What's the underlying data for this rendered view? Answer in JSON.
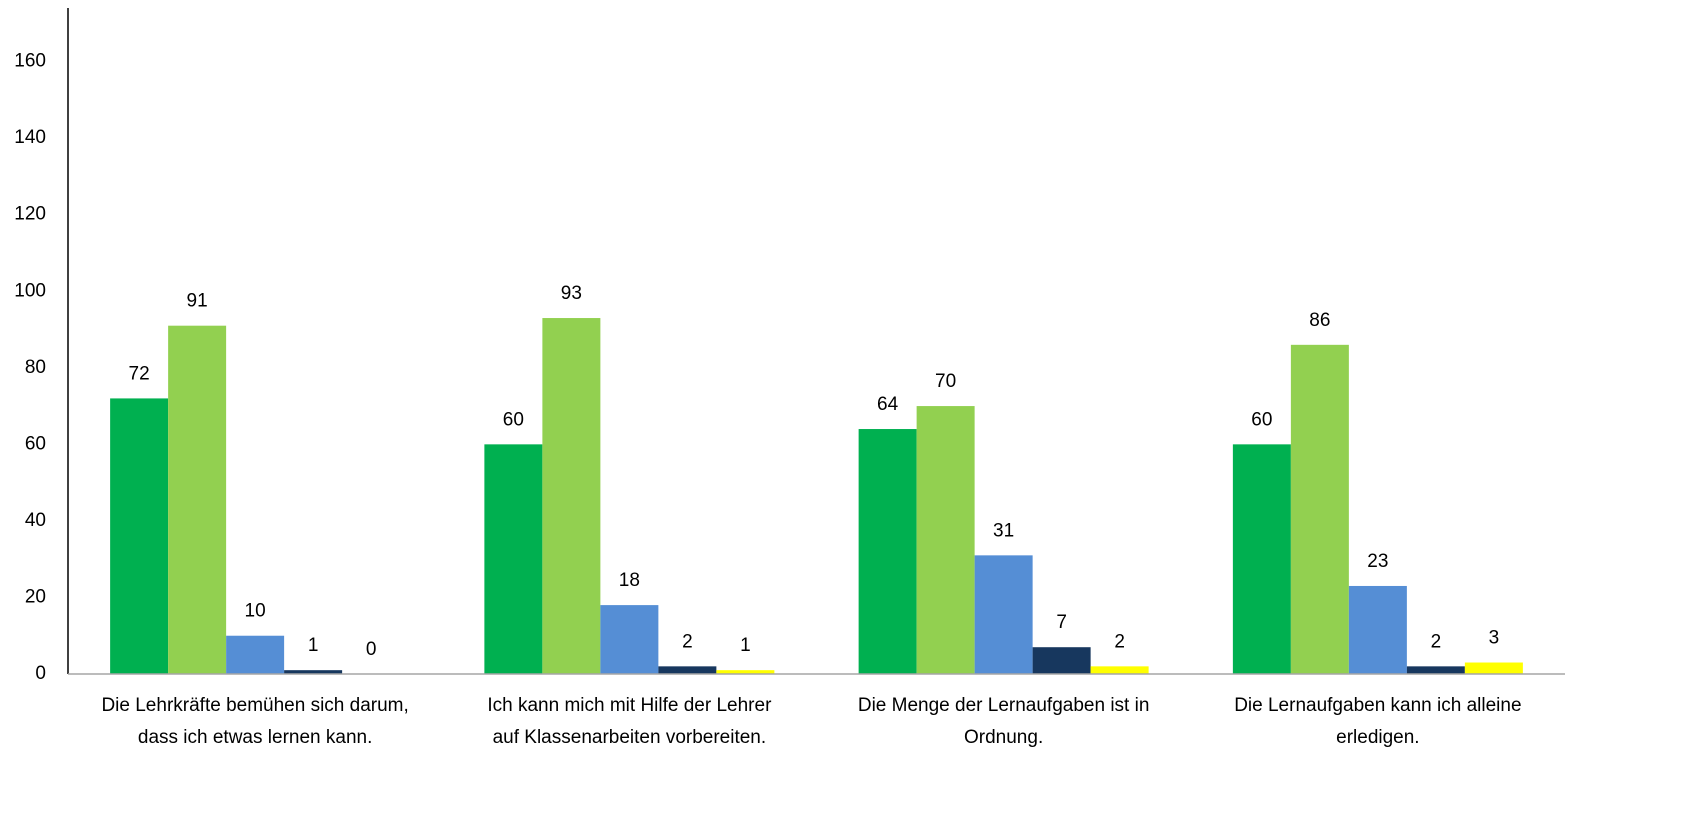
{
  "chart_data": {
    "type": "bar",
    "categories": [
      [
        "Die Lehrkräfte bemühen sich darum,",
        "dass ich etwas lernen kann."
      ],
      [
        "Ich kann mich mit Hilfe der Lehrer",
        "auf Klassenarbeiten vorbereiten."
      ],
      [
        "Die Menge der Lernaufgaben ist in",
        "Ordnung."
      ],
      [
        "Die Lernaufgaben kann ich alleine",
        "erledigen."
      ]
    ],
    "series": [
      {
        "color": "#00b050",
        "values": [
          72,
          60,
          64,
          60
        ]
      },
      {
        "color": "#92d050",
        "values": [
          91,
          93,
          70,
          86
        ]
      },
      {
        "color": "#558ed5",
        "values": [
          10,
          18,
          31,
          23
        ]
      },
      {
        "color": "#17375e",
        "values": [
          1,
          2,
          7,
          2
        ]
      },
      {
        "color": "#ffff00",
        "values": [
          0,
          1,
          2,
          3
        ]
      }
    ],
    "ylim": [
      0,
      174
    ],
    "yticks": [
      0,
      20,
      40,
      60,
      80,
      100,
      120,
      140,
      160
    ],
    "grid": false,
    "data_labels": true
  }
}
